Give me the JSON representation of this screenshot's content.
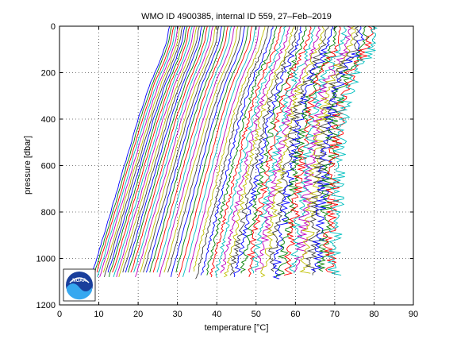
{
  "chart_data": {
    "type": "line",
    "title": "WMO ID 4900385, internal ID 559, 27–Feb–2019",
    "xlabel_prefix": "temperature [",
    "xlabel_unit": "°C",
    "xlabel_suffix": "]",
    "ylabel": "pressure [dbar]",
    "xlim": [
      0,
      90
    ],
    "ylim": [
      0,
      1200
    ],
    "y_reversed": true,
    "grid": true,
    "xticks": [
      "0",
      "10",
      "20",
      "30",
      "40",
      "50",
      "60",
      "70",
      "80",
      "90"
    ],
    "yticks": [
      "0",
      "200",
      "400",
      "600",
      "800",
      "1000",
      "1200"
    ],
    "profile_count": 60,
    "offset_per_profile": 1,
    "colors": [
      "#0000ff",
      "#008000",
      "#ff0000",
      "#00bfbf",
      "#bf00bf",
      "#bfbf00",
      "#404040"
    ],
    "profiles_left": {
      "comment_free": true,
      "pressure": [
        0,
        20,
        80,
        150,
        250,
        400,
        600,
        800,
        1000,
        1080
      ],
      "temperature": [
        28.5,
        28.0,
        27.0,
        25.5,
        23.0,
        20.0,
        16.5,
        13.0,
        9.5,
        8.0
      ]
    },
    "profiles_right": {
      "pressure": [
        0,
        50,
        100,
        200,
        300,
        400,
        600,
        800,
        1000,
        1080
      ],
      "temperature": [
        80,
        80,
        79,
        75,
        73,
        72,
        71,
        70.5,
        70,
        70
      ]
    },
    "logo": "NOAA"
  }
}
